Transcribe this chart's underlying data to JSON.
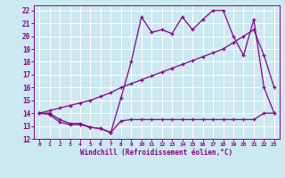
{
  "xlabel": "Windchill (Refroidissement éolien,°C)",
  "bg_color": "#cce8f0",
  "line_color": "#880088",
  "grid_color": "#ffffff",
  "xlim": [
    -0.5,
    23.5
  ],
  "ylim": [
    12,
    22.4
  ],
  "xticks": [
    0,
    1,
    2,
    3,
    4,
    5,
    6,
    7,
    8,
    9,
    10,
    11,
    12,
    13,
    14,
    15,
    16,
    17,
    18,
    19,
    20,
    21,
    22,
    23
  ],
  "yticks": [
    12,
    13,
    14,
    15,
    16,
    17,
    18,
    19,
    20,
    21,
    22
  ],
  "line1_x": [
    0,
    1,
    2,
    3,
    4,
    5,
    6,
    7,
    8,
    9,
    10,
    11,
    12,
    13,
    14,
    15,
    16,
    17,
    18,
    19,
    20,
    21,
    22,
    23
  ],
  "line1_y": [
    14.0,
    13.9,
    13.3,
    13.1,
    13.1,
    12.9,
    12.8,
    12.5,
    13.4,
    13.5,
    13.5,
    13.5,
    13.5,
    13.5,
    13.5,
    13.5,
    13.5,
    13.5,
    13.5,
    13.5,
    13.5,
    13.5,
    14.0,
    14.0
  ],
  "line2_x": [
    0,
    1,
    2,
    3,
    4,
    5,
    6,
    7,
    8,
    9,
    10,
    11,
    12,
    13,
    14,
    15,
    16,
    17,
    18,
    19,
    20,
    21,
    22,
    23
  ],
  "line2_y": [
    14.0,
    14.2,
    14.4,
    14.6,
    14.8,
    15.0,
    15.3,
    15.6,
    16.0,
    16.3,
    16.6,
    16.9,
    17.2,
    17.5,
    17.8,
    18.1,
    18.4,
    18.7,
    19.0,
    19.5,
    20.0,
    20.5,
    18.5,
    16.0
  ],
  "line3_x": [
    0,
    1,
    2,
    3,
    4,
    5,
    6,
    7,
    8,
    9,
    10,
    11,
    12,
    13,
    14,
    15,
    16,
    17,
    18,
    19,
    20,
    21,
    22,
    23
  ],
  "line3_y": [
    14.0,
    14.0,
    13.5,
    13.2,
    13.2,
    12.9,
    12.8,
    12.5,
    15.2,
    18.0,
    21.5,
    20.3,
    20.5,
    20.2,
    21.5,
    20.5,
    21.3,
    22.0,
    22.0,
    20.0,
    18.5,
    21.3,
    16.0,
    14.0
  ]
}
